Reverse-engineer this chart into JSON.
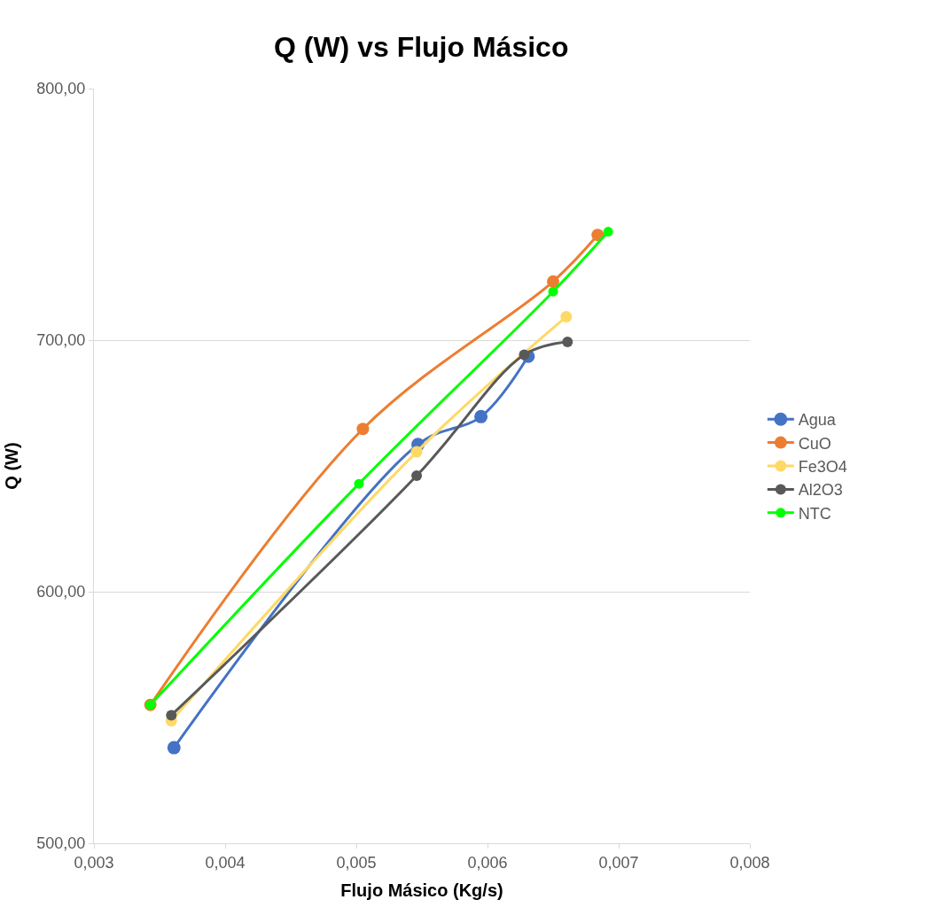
{
  "chart_data": {
    "type": "line",
    "title": "Q (W) vs Flujo Másico",
    "xlabel": "Flujo Másico (Kg/s)",
    "ylabel": "Q (W)",
    "xlim": [
      0.003,
      0.008
    ],
    "xticks": [
      {
        "value": 0.003,
        "label": "0,003"
      },
      {
        "value": 0.004,
        "label": "0,004"
      },
      {
        "value": 0.005,
        "label": "0,005"
      },
      {
        "value": 0.006,
        "label": "0,006"
      },
      {
        "value": 0.007,
        "label": "0,007"
      },
      {
        "value": 0.008,
        "label": "0,008"
      }
    ],
    "ylim": [
      500,
      800
    ],
    "yticks": [
      {
        "value": 500,
        "label": "500,00"
      },
      {
        "value": 600,
        "label": "600,00"
      },
      {
        "value": 700,
        "label": "700,00"
      },
      {
        "value": 800,
        "label": "800,00"
      }
    ],
    "grid": "y",
    "legend": "right",
    "marker": "circle",
    "line_style": "solid",
    "series": [
      {
        "name": "Agua",
        "color": "#4472c4",
        "x": [
          0.00361,
          0.00547,
          0.00595,
          0.00631
        ],
        "values": [
          538,
          658.5,
          669.6,
          693.6
        ]
      },
      {
        "name": "CuO",
        "color": "#ed7d31",
        "x": [
          0.00343,
          0.00505,
          0.0065,
          0.00684
        ],
        "values": [
          555,
          664.7,
          723.3,
          741.8
        ]
      },
      {
        "name": "Fe3O4",
        "color": "#ffd966",
        "x": [
          0.00359,
          0.00546,
          0.0066
        ],
        "values": [
          548.7,
          655.6,
          709.3
        ]
      },
      {
        "name": "Al2O3",
        "color": "#595959",
        "x": [
          0.00359,
          0.00546,
          0.00628,
          0.00661
        ],
        "values": [
          550.9,
          646.1,
          694.2,
          699.3
        ]
      },
      {
        "name": "NTC",
        "color": "#00ff00",
        "x": [
          0.00343,
          0.00502,
          0.0065,
          0.00692
        ],
        "values": [
          555,
          642.9,
          719.3,
          743.1
        ]
      }
    ]
  }
}
